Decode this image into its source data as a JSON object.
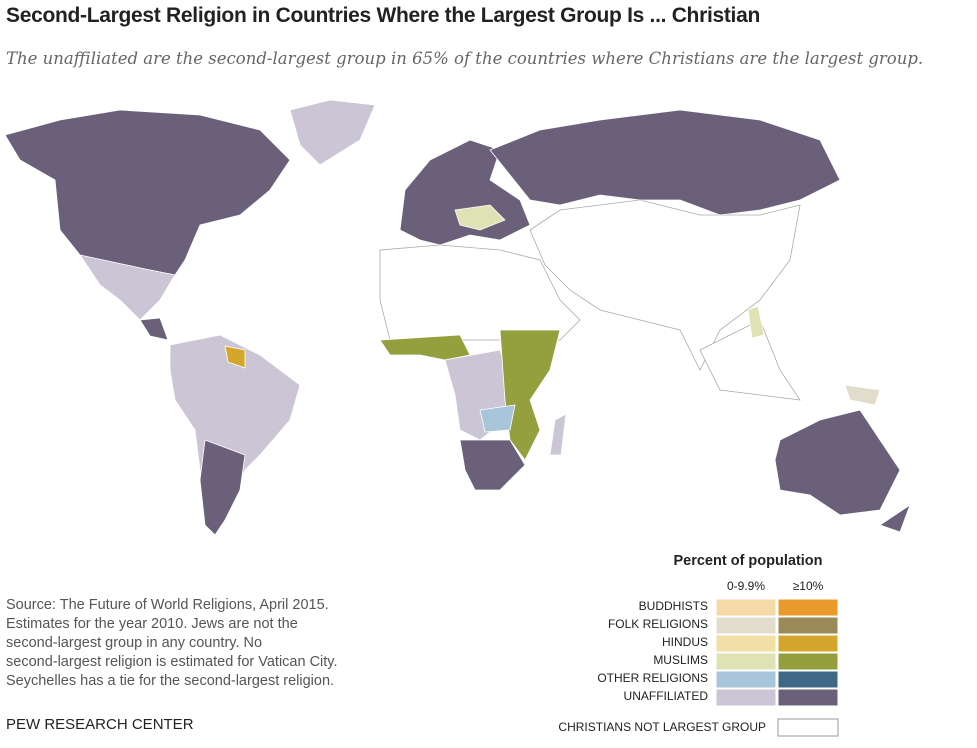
{
  "header": {
    "title": "Second-Largest Religion in Countries Where the Largest Group Is ... Christian",
    "subtitle": "The unaffiliated are the second-largest group in 65% of the countries where Christians are the largest group."
  },
  "legend": {
    "title": "Percent of population",
    "columns": [
      "0-9.9%",
      "≥10%"
    ],
    "rows": [
      {
        "label": "BUDDHISTS",
        "colors": [
          "#f6d9a9",
          "#ea9a2b"
        ]
      },
      {
        "label": "FOLK RELIGIONS",
        "colors": [
          "#e1dccb",
          "#9a8a57"
        ]
      },
      {
        "label": "HINDUS",
        "colors": [
          "#f2dfa5",
          "#d4a72c"
        ]
      },
      {
        "label": "MUSLIMS",
        "colors": [
          "#dfe2b4",
          "#93a03d"
        ]
      },
      {
        "label": "OTHER RELIGIONS",
        "colors": [
          "#a9c5da",
          "#3f6886"
        ]
      },
      {
        "label": "UNAFFILIATED",
        "colors": [
          "#cbc5d5",
          "#6b6079"
        ]
      }
    ],
    "other": {
      "label": "CHRISTIANS NOT LARGEST GROUP",
      "color": "#ffffff"
    }
  },
  "source": [
    "Source: The Future of World Religions, April 2015.",
    "Estimates for the year 2010. Jews are not the",
    "second-largest group in any country. No",
    "second-largest religion is estimated for Vatican City.",
    "Seychelles has a tie for the second-largest religion."
  ],
  "footer": "PEW RESEARCH CENTER"
}
